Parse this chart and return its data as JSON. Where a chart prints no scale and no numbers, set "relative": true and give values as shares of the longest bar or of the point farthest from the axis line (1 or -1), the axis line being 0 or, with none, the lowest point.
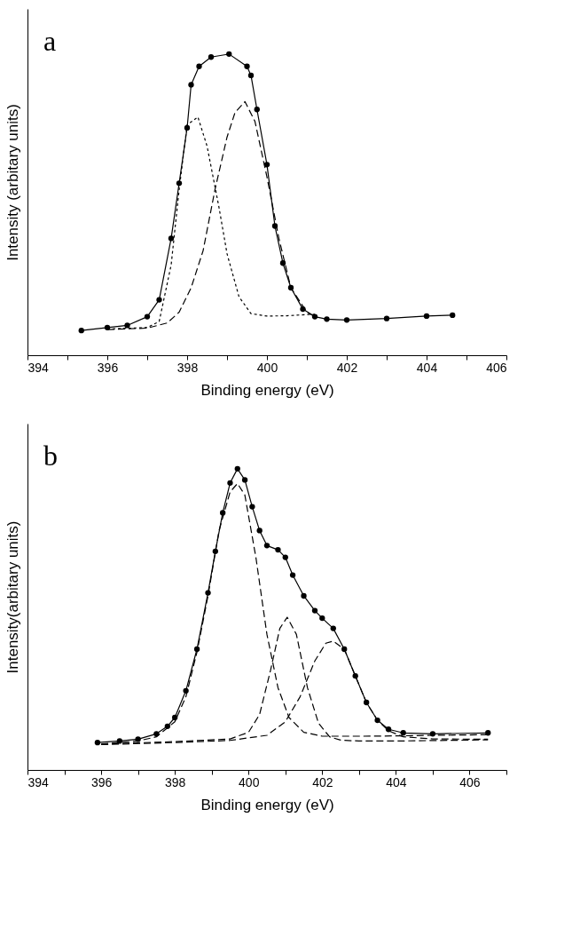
{
  "chart_data": [
    {
      "type": "line",
      "relative": true,
      "xlabel": "Binding energy (eV)",
      "ylabel": "Intensity (arbitary units)",
      "annotations": [
        "a"
      ],
      "xlim": [
        394,
        406
      ],
      "xticks": [
        394,
        {
          "value": 395,
          "label": null
        },
        396,
        {
          "value": 397,
          "label": null
        },
        398,
        {
          "value": 399,
          "label": null
        },
        400,
        {
          "value": 401,
          "label": null
        },
        402,
        {
          "value": 403,
          "label": null
        },
        404,
        {
          "value": 405,
          "label": null
        },
        406
      ],
      "grid": false,
      "legend": false,
      "series": [
        {
          "color": "#000000",
          "marker": "circle",
          "line_style": "solid",
          "x": [
            395.35,
            396,
            396.5,
            397,
            397.3,
            397.6,
            397.8,
            398.0,
            398.1,
            398.3,
            398.6,
            399.05,
            399.5,
            399.6,
            399.75,
            400.0,
            400.2,
            400.4,
            400.6,
            400.9,
            401.2,
            401.5,
            402,
            403,
            404,
            404.65
          ],
          "values": [
            0.082,
            0.092,
            0.099,
            0.128,
            0.184,
            0.388,
            0.571,
            0.755,
            0.898,
            0.959,
            0.99,
            1.0,
            0.959,
            0.929,
            0.816,
            0.633,
            0.429,
            0.306,
            0.224,
            0.153,
            0.128,
            0.12,
            0.117,
            0.122,
            0.13,
            0.133
          ]
        },
        {
          "color": "#000000",
          "marker": "none",
          "line_style": "dotted",
          "x": [
            396,
            397,
            397.3,
            397.6,
            397.8,
            398.0,
            398.27,
            398.5,
            398.8,
            399.0,
            399.3,
            399.6,
            400,
            400.5,
            401,
            401.2
          ],
          "values": [
            0.087,
            0.092,
            0.112,
            0.3,
            0.55,
            0.765,
            0.791,
            0.694,
            0.49,
            0.337,
            0.194,
            0.138,
            0.13,
            0.131,
            0.135,
            0.136
          ]
        },
        {
          "color": "#000000",
          "marker": "none",
          "line_style": "dashed",
          "x": [
            396,
            397,
            397.5,
            397.8,
            398.1,
            398.4,
            398.7,
            399.0,
            399.2,
            399.45,
            399.7,
            400.0,
            400.3,
            400.6,
            401.0,
            401.2
          ],
          "values": [
            0.085,
            0.09,
            0.107,
            0.143,
            0.224,
            0.347,
            0.551,
            0.724,
            0.806,
            0.842,
            0.776,
            0.592,
            0.388,
            0.224,
            0.143,
            0.128
          ]
        }
      ]
    },
    {
      "type": "line",
      "relative": true,
      "xlabel": "Binding energy (eV)",
      "ylabel": "Intensity(arbitary units)",
      "annotations": [
        "b"
      ],
      "xlim": [
        394,
        407
      ],
      "xticks": [
        394,
        {
          "value": 395,
          "label": null
        },
        396,
        {
          "value": 397,
          "label": null
        },
        398,
        {
          "value": 399,
          "label": null
        },
        400,
        {
          "value": 401,
          "label": null
        },
        402,
        {
          "value": 403,
          "label": null
        },
        404,
        {
          "value": 405,
          "label": null
        },
        406,
        {
          "value": 407,
          "label": null
        }
      ],
      "grid": false,
      "legend": false,
      "series": [
        {
          "color": "#000000",
          "marker": "circle",
          "line_style": "solid",
          "x": [
            395.9,
            396.5,
            397,
            397.5,
            397.8,
            398.0,
            398.3,
            398.6,
            398.9,
            399.1,
            399.3,
            399.5,
            399.7,
            399.9,
            400.1,
            400.3,
            400.5,
            400.8,
            401.0,
            401.2,
            401.5,
            401.8,
            402.0,
            402.3,
            402.6,
            402.9,
            403.2,
            403.5,
            403.8,
            404.2,
            405,
            406.5
          ],
          "values": [
            0.091,
            0.096,
            0.102,
            0.12,
            0.145,
            0.174,
            0.263,
            0.401,
            0.588,
            0.726,
            0.854,
            0.953,
            1.0,
            0.963,
            0.874,
            0.795,
            0.745,
            0.731,
            0.706,
            0.647,
            0.578,
            0.529,
            0.504,
            0.47,
            0.401,
            0.312,
            0.224,
            0.165,
            0.135,
            0.123,
            0.12,
            0.123
          ]
        },
        {
          "color": "#000000",
          "marker": "none",
          "line_style": "dashed",
          "x": [
            396,
            397,
            397.5,
            398,
            398.3,
            398.6,
            398.9,
            399.2,
            399.5,
            399.7,
            399.9,
            400.2,
            400.5,
            400.8,
            401.1,
            401.5,
            402,
            403,
            404,
            405,
            406.5
          ],
          "values": [
            0.086,
            0.096,
            0.11,
            0.16,
            0.243,
            0.391,
            0.578,
            0.795,
            0.923,
            0.951,
            0.913,
            0.706,
            0.45,
            0.273,
            0.174,
            0.125,
            0.112,
            0.112,
            0.113,
            0.115,
            0.117
          ]
        },
        {
          "color": "#000000",
          "marker": "none",
          "line_style": "dashed",
          "x": [
            396,
            398,
            399.5,
            400,
            400.3,
            400.6,
            400.85,
            401.05,
            401.3,
            401.6,
            401.9,
            402.2,
            402.5,
            403,
            404,
            406.5
          ],
          "values": [
            0.086,
            0.094,
            0.103,
            0.125,
            0.184,
            0.332,
            0.47,
            0.507,
            0.45,
            0.273,
            0.155,
            0.11,
            0.099,
            0.096,
            0.096,
            0.1
          ]
        },
        {
          "color": "#000000",
          "marker": "none",
          "line_style": "dashed",
          "x": [
            396,
            398,
            399.5,
            400.5,
            401,
            401.4,
            401.8,
            402.1,
            402.3,
            402.6,
            402.9,
            403.2,
            403.5,
            403.8,
            404.2,
            405,
            406.5
          ],
          "values": [
            0.084,
            0.091,
            0.098,
            0.115,
            0.16,
            0.243,
            0.362,
            0.421,
            0.428,
            0.401,
            0.312,
            0.224,
            0.165,
            0.13,
            0.11,
            0.103,
            0.102
          ]
        }
      ]
    }
  ]
}
